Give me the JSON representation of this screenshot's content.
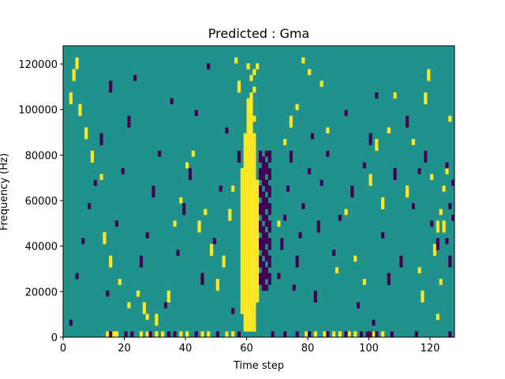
{
  "chart_data": {
    "type": "heatmap",
    "title": "Predicted : Gma",
    "xlabel": "Time step",
    "ylabel": "Frequency (Hz)",
    "xlim": [
      0,
      128
    ],
    "ylim": [
      0,
      128000
    ],
    "x_ticks": [
      0,
      20,
      40,
      60,
      80,
      100,
      120
    ],
    "y_ticks": [
      0,
      20000,
      40000,
      60000,
      80000,
      100000,
      120000
    ],
    "x_tick_labels": [
      "0",
      "20",
      "40",
      "60",
      "80",
      "100",
      "120"
    ],
    "y_tick_labels": [
      "0",
      "20000",
      "40000",
      "60000",
      "80000",
      "100000",
      "120000"
    ],
    "colormap": "viridis",
    "colors": {
      "background": "#21918c",
      "high": "#fde725",
      "low": "#440154"
    },
    "n_rows": 50,
    "n_cols": 128,
    "yellow_band": {
      "x_start": 58,
      "x_end": 63
    },
    "dark_band": {
      "x_start": 64,
      "x_end": 67
    },
    "sparse_yellow_cells": [
      [
        3,
        44
      ],
      [
        4,
        46
      ],
      [
        2,
        40
      ],
      [
        5,
        38
      ],
      [
        7,
        34
      ],
      [
        9,
        30
      ],
      [
        12,
        27
      ],
      [
        13,
        16
      ],
      [
        15,
        12
      ],
      [
        18,
        9
      ],
      [
        21,
        5
      ],
      [
        24,
        7
      ],
      [
        26,
        4
      ],
      [
        27,
        3
      ],
      [
        30,
        2
      ],
      [
        34,
        6
      ],
      [
        36,
        19
      ],
      [
        38,
        23
      ],
      [
        40,
        29
      ],
      [
        42,
        31
      ],
      [
        44,
        18
      ],
      [
        46,
        21
      ],
      [
        48,
        14
      ],
      [
        50,
        8
      ],
      [
        52,
        12
      ],
      [
        54,
        20
      ],
      [
        55,
        25
      ],
      [
        56,
        47
      ],
      [
        57,
        42
      ],
      [
        61,
        13
      ],
      [
        70,
        19
      ],
      [
        72,
        33
      ],
      [
        74,
        36
      ],
      [
        76,
        39
      ],
      [
        78,
        47
      ],
      [
        80,
        45
      ],
      [
        84,
        43
      ],
      [
        86,
        35
      ],
      [
        89,
        11
      ],
      [
        92,
        21
      ],
      [
        95,
        13
      ],
      [
        98,
        9
      ],
      [
        100,
        26
      ],
      [
        102,
        32
      ],
      [
        104,
        22
      ],
      [
        106,
        35
      ],
      [
        108,
        41
      ],
      [
        110,
        13
      ],
      [
        112,
        24
      ],
      [
        114,
        33
      ],
      [
        116,
        11
      ],
      [
        117,
        6
      ],
      [
        118,
        40
      ],
      [
        119,
        44
      ],
      [
        120,
        27
      ],
      [
        121,
        14
      ],
      [
        122,
        18
      ],
      [
        123,
        21
      ],
      [
        124,
        25
      ],
      [
        124,
        18
      ],
      [
        123,
        9
      ],
      [
        122,
        3
      ],
      [
        125,
        28
      ],
      [
        126,
        37
      ]
    ],
    "sparse_dark_cells": [
      [
        2,
        2
      ],
      [
        4,
        10
      ],
      [
        6,
        16
      ],
      [
        8,
        22
      ],
      [
        10,
        26
      ],
      [
        12,
        33
      ],
      [
        14,
        7
      ],
      [
        15,
        42
      ],
      [
        17,
        19
      ],
      [
        19,
        28
      ],
      [
        21,
        36
      ],
      [
        23,
        44
      ],
      [
        25,
        12
      ],
      [
        27,
        17
      ],
      [
        29,
        24
      ],
      [
        31,
        31
      ],
      [
        33,
        5
      ],
      [
        35,
        40
      ],
      [
        37,
        14
      ],
      [
        39,
        21
      ],
      [
        41,
        27
      ],
      [
        43,
        38
      ],
      [
        45,
        9
      ],
      [
        47,
        46
      ],
      [
        49,
        16
      ],
      [
        51,
        25
      ],
      [
        53,
        35
      ],
      [
        55,
        4
      ],
      [
        57,
        30
      ],
      [
        70,
        10
      ],
      [
        71,
        15
      ],
      [
        72,
        20
      ],
      [
        73,
        25
      ],
      [
        74,
        30
      ],
      [
        75,
        8
      ],
      [
        76,
        12
      ],
      [
        77,
        17
      ],
      [
        78,
        22
      ],
      [
        80,
        28
      ],
      [
        81,
        34
      ],
      [
        82,
        6
      ],
      [
        83,
        18
      ],
      [
        84,
        26
      ],
      [
        86,
        31
      ],
      [
        88,
        14
      ],
      [
        90,
        20
      ],
      [
        92,
        38
      ],
      [
        94,
        24
      ],
      [
        96,
        5
      ],
      [
        98,
        29
      ],
      [
        100,
        33
      ],
      [
        101,
        2
      ],
      [
        102,
        41
      ],
      [
        104,
        17
      ],
      [
        106,
        9
      ],
      [
        108,
        27
      ],
      [
        110,
        12
      ],
      [
        112,
        36
      ],
      [
        114,
        22
      ],
      [
        116,
        28
      ],
      [
        118,
        30
      ],
      [
        120,
        19
      ],
      [
        122,
        15
      ],
      [
        125,
        16
      ],
      [
        126,
        12
      ],
      [
        127,
        26
      ],
      [
        127,
        20
      ],
      [
        126,
        22
      ],
      [
        125,
        29
      ]
    ],
    "bottom_row_yellow": [
      14,
      16,
      17,
      25,
      27,
      30,
      32,
      38,
      40,
      45,
      47,
      53,
      55,
      79,
      82,
      85,
      88,
      90,
      93,
      95,
      101,
      104
    ],
    "bottom_row_dark": [
      15,
      20,
      22,
      28,
      34,
      36,
      43,
      50,
      57,
      68,
      72,
      76,
      80,
      86,
      92,
      97,
      99,
      100,
      102,
      107,
      115,
      126
    ]
  }
}
